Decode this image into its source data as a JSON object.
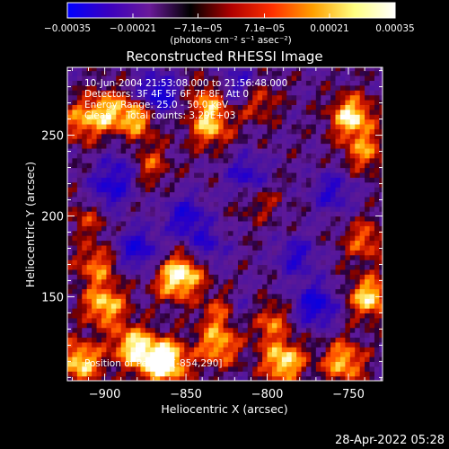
{
  "chart_data": {
    "type": "heatmap",
    "title": "Reconstructed RHESSI Image",
    "xlabel": "Heliocentric X (arcsec)",
    "ylabel": "Heliocentric Y (arcsec)",
    "xlim": [
      -923,
      -729
    ],
    "ylim": [
      98,
      292
    ],
    "x_ticks": [
      -900,
      -850,
      -800,
      -750
    ],
    "x_tick_labels": [
      "−900",
      "−850",
      "−800",
      "−750"
    ],
    "y_ticks": [
      150,
      200,
      250
    ],
    "y_tick_labels": [
      "150",
      "200",
      "250"
    ],
    "colorbar": {
      "min": -0.00035,
      "max": 0.00035,
      "tick_values": [
        -0.00035,
        -0.00021,
        -7.1e-05,
        7.1e-05,
        0.00021,
        0.00035
      ],
      "tick_labels": [
        "−0.00035",
        "−0.00021",
        "−7.1e−05",
        "7.1e−05",
        "0.00021",
        "0.00035"
      ],
      "unit_label": "(photons cm⁻² s⁻¹ asec⁻²)",
      "colors": [
        "#0000ff",
        "#3a00c0",
        "#6a1a9a",
        "#000000",
        "#b00000",
        "#ff3000",
        "#ffa000",
        "#ffff80",
        "#ffffff"
      ]
    },
    "annotations": {
      "time": "10-Jun-2004 21:53:08.000 to 21:56:48.000",
      "detectors": "Detectors: 3F 4F 5F 6F 7F 8F, Att 0",
      "energy": "Energy Range: 25.0 - 50.0 keV",
      "clean": "Clean     Total counts: 3.29E+03",
      "peak": "Position of Peak = [-854,290]"
    },
    "footer_date": "28-Apr-2022 05:28",
    "grid": false,
    "hot_spots": [
      {
        "x": -915,
        "y": 110,
        "v": 0.9
      },
      {
        "x": -900,
        "y": 145,
        "v": 0.85
      },
      {
        "x": -905,
        "y": 170,
        "v": 0.6
      },
      {
        "x": -883,
        "y": 120,
        "v": 0.85
      },
      {
        "x": -860,
        "y": 110,
        "v": 0.7
      },
      {
        "x": -857,
        "y": 160,
        "v": 0.75
      },
      {
        "x": -848,
        "y": 168,
        "v": 0.6
      },
      {
        "x": -830,
        "y": 120,
        "v": 0.75
      },
      {
        "x": -828,
        "y": 140,
        "v": 0.55
      },
      {
        "x": -800,
        "y": 135,
        "v": 0.65
      },
      {
        "x": -790,
        "y": 110,
        "v": 0.95
      },
      {
        "x": -753,
        "y": 110,
        "v": 0.8
      },
      {
        "x": -737,
        "y": 150,
        "v": 0.9
      },
      {
        "x": -740,
        "y": 185,
        "v": 0.55
      },
      {
        "x": -748,
        "y": 262,
        "v": 0.95
      },
      {
        "x": -740,
        "y": 240,
        "v": 0.6
      },
      {
        "x": -835,
        "y": 255,
        "v": 0.7
      },
      {
        "x": -836,
        "y": 272,
        "v": 0.6
      },
      {
        "x": -880,
        "y": 262,
        "v": 0.85
      },
      {
        "x": -900,
        "y": 265,
        "v": 0.7
      },
      {
        "x": -915,
        "y": 258,
        "v": 0.55
      },
      {
        "x": -910,
        "y": 200,
        "v": 0.4
      },
      {
        "x": -874,
        "y": 232,
        "v": 0.55
      },
      {
        "x": -807,
        "y": 272,
        "v": 0.55
      },
      {
        "x": -805,
        "y": 210,
        "v": 0.35
      },
      {
        "x": -868,
        "y": 110,
        "v": 0.8
      }
    ],
    "cold_spots": [
      {
        "x": -868,
        "y": 275,
        "v": -0.9
      },
      {
        "x": -818,
        "y": 280,
        "v": -0.6
      },
      {
        "x": -880,
        "y": 180,
        "v": -0.7
      },
      {
        "x": -850,
        "y": 200,
        "v": -0.65
      },
      {
        "x": -812,
        "y": 225,
        "v": -0.6
      },
      {
        "x": -770,
        "y": 145,
        "v": -0.8
      },
      {
        "x": -782,
        "y": 175,
        "v": -0.55
      },
      {
        "x": -838,
        "y": 180,
        "v": -0.55
      },
      {
        "x": -888,
        "y": 230,
        "v": -0.5
      },
      {
        "x": -760,
        "y": 215,
        "v": -0.55
      },
      {
        "x": -815,
        "y": 140,
        "v": -0.45
      },
      {
        "x": -898,
        "y": 215,
        "v": -0.6
      }
    ]
  }
}
